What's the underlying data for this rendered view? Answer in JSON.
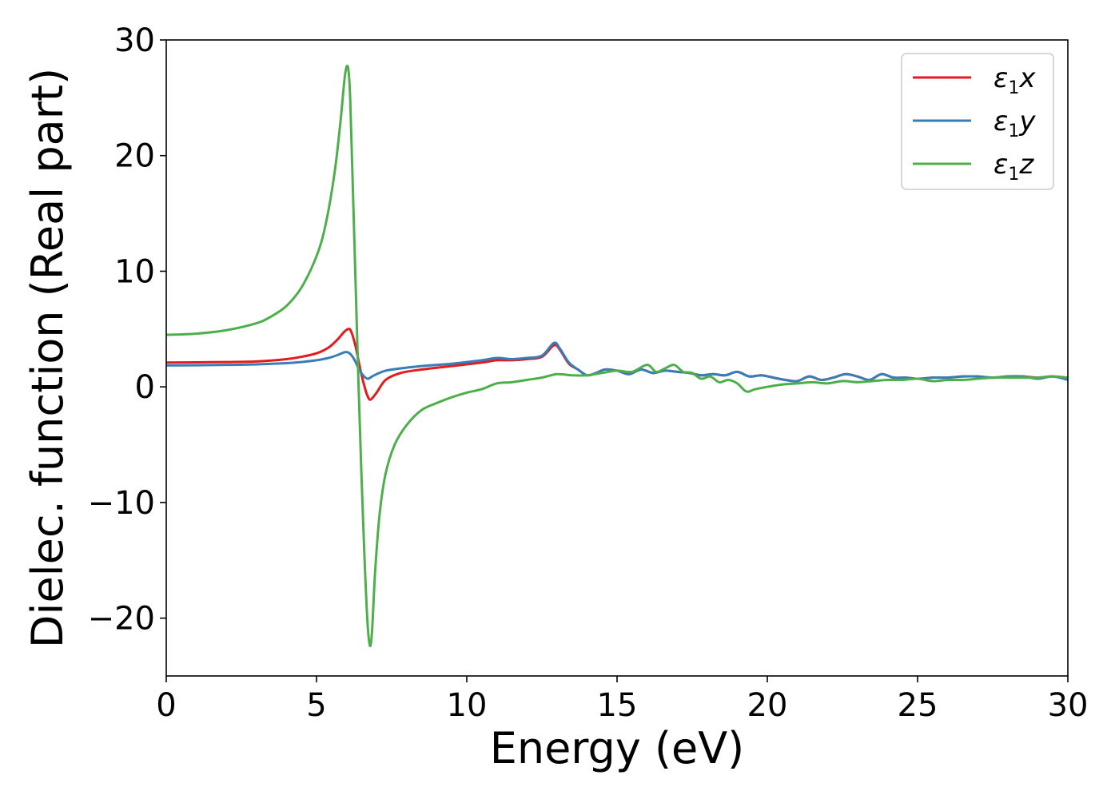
{
  "chart_data": {
    "type": "line",
    "xlabel": "Energy (eV)",
    "ylabel": "Dielec. function (Real part)",
    "xlim": [
      0,
      30
    ],
    "ylim": [
      -25,
      30
    ],
    "xticks": [
      0,
      5,
      10,
      15,
      20,
      25,
      30
    ],
    "yticks": [
      -20,
      -10,
      0,
      10,
      20,
      30
    ],
    "xtick_labels": [
      "0",
      "5",
      "10",
      "15",
      "20",
      "25",
      "30"
    ],
    "ytick_labels": [
      "−20",
      "−10",
      "0",
      "10",
      "20",
      "30"
    ],
    "grid": false,
    "legend_position": "top-right",
    "series": [
      {
        "name": "ε₁x",
        "legend_main": "ε",
        "legend_sub": "1",
        "legend_var": "x",
        "color": "#e41a1c",
        "x": [
          0,
          1,
          2,
          3,
          4,
          4.5,
          5,
          5.4,
          5.7,
          5.9,
          6.05,
          6.15,
          6.3,
          6.45,
          6.6,
          6.7,
          6.8,
          7.0,
          7.3,
          7.8,
          8.5,
          9.5,
          10.5,
          11,
          11.5,
          12,
          12.5,
          12.9,
          13.1,
          13.4,
          13.7,
          14,
          14.3,
          14.6,
          15,
          15.4,
          15.8,
          16.2,
          16.6,
          17,
          17.4,
          17.8,
          18.2,
          18.6,
          19,
          19.4,
          19.8,
          20.2,
          20.6,
          21,
          21.4,
          21.8,
          22.2,
          22.6,
          23,
          23.4,
          23.8,
          24.2,
          24.6,
          25,
          25.5,
          26,
          26.5,
          27,
          27.5,
          28,
          28.5,
          29,
          29.5,
          30
        ],
        "y": [
          2.1,
          2.12,
          2.15,
          2.2,
          2.4,
          2.6,
          2.9,
          3.4,
          4.1,
          4.7,
          5.0,
          4.8,
          3.5,
          1.6,
          0.0,
          -0.8,
          -1.1,
          -0.5,
          0.6,
          1.2,
          1.5,
          1.8,
          2.1,
          2.3,
          2.3,
          2.4,
          2.6,
          3.6,
          3.2,
          2.0,
          1.5,
          1.0,
          1.2,
          1.5,
          1.4,
          1.1,
          1.5,
          1.2,
          1.4,
          1.3,
          1.2,
          1.0,
          1.1,
          1.0,
          1.3,
          0.9,
          1.0,
          0.8,
          0.6,
          0.5,
          0.9,
          0.6,
          0.8,
          1.1,
          0.9,
          0.6,
          1.1,
          0.8,
          0.8,
          0.7,
          0.8,
          0.8,
          0.9,
          0.9,
          0.8,
          0.9,
          0.9,
          0.8,
          0.9,
          0.7
        ]
      },
      {
        "name": "ε₁y",
        "legend_main": "ε",
        "legend_sub": "1",
        "legend_var": "y",
        "color": "#377eb8",
        "x": [
          0,
          1,
          2,
          3,
          4,
          4.5,
          5,
          5.4,
          5.7,
          5.95,
          6.1,
          6.25,
          6.4,
          6.55,
          6.7,
          6.85,
          7.0,
          7.3,
          7.8,
          8.5,
          9.5,
          10.5,
          11,
          11.5,
          12,
          12.5,
          12.9,
          13.1,
          13.4,
          13.7,
          14,
          14.3,
          14.6,
          15,
          15.4,
          15.8,
          16.2,
          16.6,
          17,
          17.4,
          17.8,
          18.2,
          18.6,
          19,
          19.4,
          19.8,
          20.2,
          20.6,
          21,
          21.4,
          21.8,
          22.2,
          22.6,
          23,
          23.4,
          23.8,
          24.2,
          24.6,
          25,
          25.5,
          26,
          26.5,
          27,
          27.5,
          28,
          28.5,
          29,
          29.5,
          30
        ],
        "y": [
          1.85,
          1.87,
          1.9,
          1.95,
          2.05,
          2.15,
          2.3,
          2.5,
          2.75,
          3.0,
          2.9,
          2.4,
          1.6,
          1.0,
          0.7,
          0.9,
          1.1,
          1.4,
          1.6,
          1.8,
          2.0,
          2.3,
          2.5,
          2.4,
          2.5,
          2.7,
          3.8,
          3.3,
          2.1,
          1.5,
          1.0,
          1.2,
          1.5,
          1.4,
          1.1,
          1.5,
          1.2,
          1.4,
          1.3,
          1.2,
          1.0,
          1.1,
          1.0,
          1.3,
          0.9,
          1.0,
          0.8,
          0.6,
          0.5,
          0.9,
          0.6,
          0.8,
          1.1,
          0.9,
          0.6,
          1.1,
          0.8,
          0.8,
          0.7,
          0.8,
          0.8,
          0.9,
          0.9,
          0.8,
          0.9,
          0.9,
          0.7,
          0.9,
          0.6
        ]
      },
      {
        "name": "ε₁z",
        "legend_main": "ε",
        "legend_sub": "1",
        "legend_var": "z",
        "color": "#4daf4a",
        "x": [
          0,
          1,
          2,
          3,
          3.5,
          4,
          4.5,
          5,
          5.3,
          5.6,
          5.8,
          5.95,
          6.05,
          6.12,
          6.2,
          6.3,
          6.4,
          6.5,
          6.6,
          6.7,
          6.78,
          6.85,
          6.95,
          7.1,
          7.3,
          7.6,
          8.0,
          8.5,
          9,
          9.5,
          10,
          10.5,
          11,
          11.5,
          12,
          12.5,
          13,
          13.5,
          14,
          14.5,
          15,
          15.5,
          16,
          16.3,
          16.6,
          16.9,
          17.2,
          17.5,
          17.8,
          18.1,
          18.4,
          18.7,
          19,
          19.3,
          19.6,
          20,
          20.5,
          21,
          21.5,
          22,
          22.5,
          23,
          23.5,
          24,
          24.5,
          25,
          25.5,
          26,
          26.5,
          27,
          27.5,
          28,
          28.5,
          29,
          29.5,
          30
        ],
        "y": [
          4.5,
          4.6,
          4.9,
          5.5,
          6.1,
          7.0,
          8.6,
          11.3,
          14.0,
          18.5,
          23.0,
          27.0,
          27.6,
          25.0,
          18.0,
          9.0,
          0.0,
          -8.0,
          -15.0,
          -20.5,
          -22.4,
          -21.0,
          -16.0,
          -11.0,
          -7.5,
          -5.0,
          -3.3,
          -2.0,
          -1.4,
          -0.9,
          -0.5,
          -0.2,
          0.3,
          0.4,
          0.6,
          0.8,
          1.1,
          1.0,
          1.0,
          1.2,
          1.4,
          1.3,
          1.9,
          1.3,
          1.6,
          1.9,
          1.3,
          1.2,
          0.7,
          0.9,
          0.4,
          0.6,
          0.3,
          -0.4,
          -0.2,
          0.0,
          0.2,
          0.3,
          0.4,
          0.3,
          0.5,
          0.4,
          0.5,
          0.6,
          0.6,
          0.7,
          0.5,
          0.6,
          0.6,
          0.7,
          0.8,
          0.8,
          0.8,
          0.8,
          0.9,
          0.8
        ]
      }
    ]
  }
}
